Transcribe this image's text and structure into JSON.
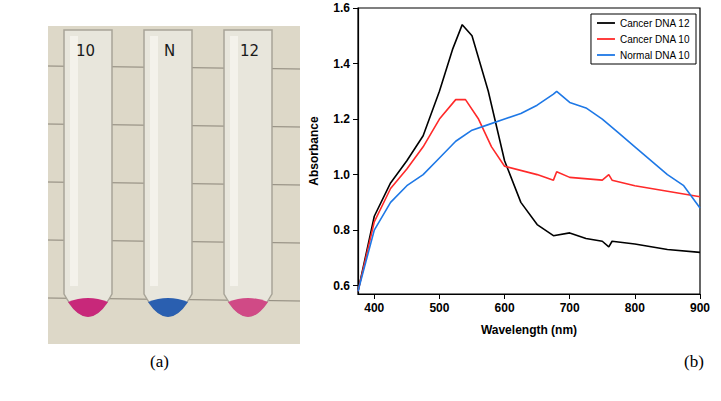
{
  "photo": {
    "panel_label": "(a)",
    "tube_labels": [
      "10",
      "N",
      "12"
    ]
  },
  "chart_data": {
    "type": "line",
    "panel_label": "(b)",
    "xlabel": "Wavelength (nm)",
    "ylabel": "Absorbance",
    "xlim": [
      375,
      900
    ],
    "xticks": [
      400,
      500,
      600,
      700,
      800,
      900
    ],
    "ylim": [
      0.57,
      1.6
    ],
    "yticks": [
      0.6,
      0.8,
      {
        "value": 1,
        "label": "1.0"
      },
      1.2,
      1.4,
      1.6
    ],
    "grid": false,
    "legend": "upper right",
    "series": [
      {
        "name": "Cancer DNA 12",
        "color": "#000000",
        "x": [
          375,
          400,
          425,
          450,
          475,
          500,
          520,
          535,
          550,
          575,
          600,
          625,
          650,
          675,
          700,
          725,
          750,
          760,
          765,
          800,
          850,
          900
        ],
        "values": [
          0.58,
          0.85,
          0.97,
          1.05,
          1.14,
          1.3,
          1.45,
          1.54,
          1.5,
          1.3,
          1.05,
          0.9,
          0.82,
          0.78,
          0.79,
          0.77,
          0.76,
          0.74,
          0.76,
          0.75,
          0.73,
          0.72
        ]
      },
      {
        "name": "Cancer DNA 10",
        "color": "#ff2a2a",
        "x": [
          375,
          400,
          425,
          450,
          475,
          500,
          525,
          540,
          560,
          580,
          600,
          650,
          675,
          680,
          700,
          750,
          760,
          765,
          800,
          850,
          900
        ],
        "values": [
          0.58,
          0.83,
          0.95,
          1.02,
          1.1,
          1.2,
          1.27,
          1.27,
          1.2,
          1.1,
          1.03,
          1.0,
          0.98,
          1.01,
          0.99,
          0.98,
          1.0,
          0.98,
          0.96,
          0.94,
          0.92
        ]
      },
      {
        "name": "Normal DNA 10",
        "color": "#1e78e6",
        "x": [
          375,
          400,
          425,
          450,
          475,
          500,
          525,
          550,
          575,
          600,
          625,
          650,
          675,
          680,
          700,
          725,
          750,
          775,
          800,
          850,
          875,
          900
        ],
        "values": [
          0.58,
          0.8,
          0.9,
          0.96,
          1.0,
          1.06,
          1.12,
          1.16,
          1.18,
          1.2,
          1.22,
          1.25,
          1.29,
          1.3,
          1.26,
          1.24,
          1.2,
          1.15,
          1.1,
          1.0,
          0.96,
          0.88
        ]
      }
    ]
  }
}
